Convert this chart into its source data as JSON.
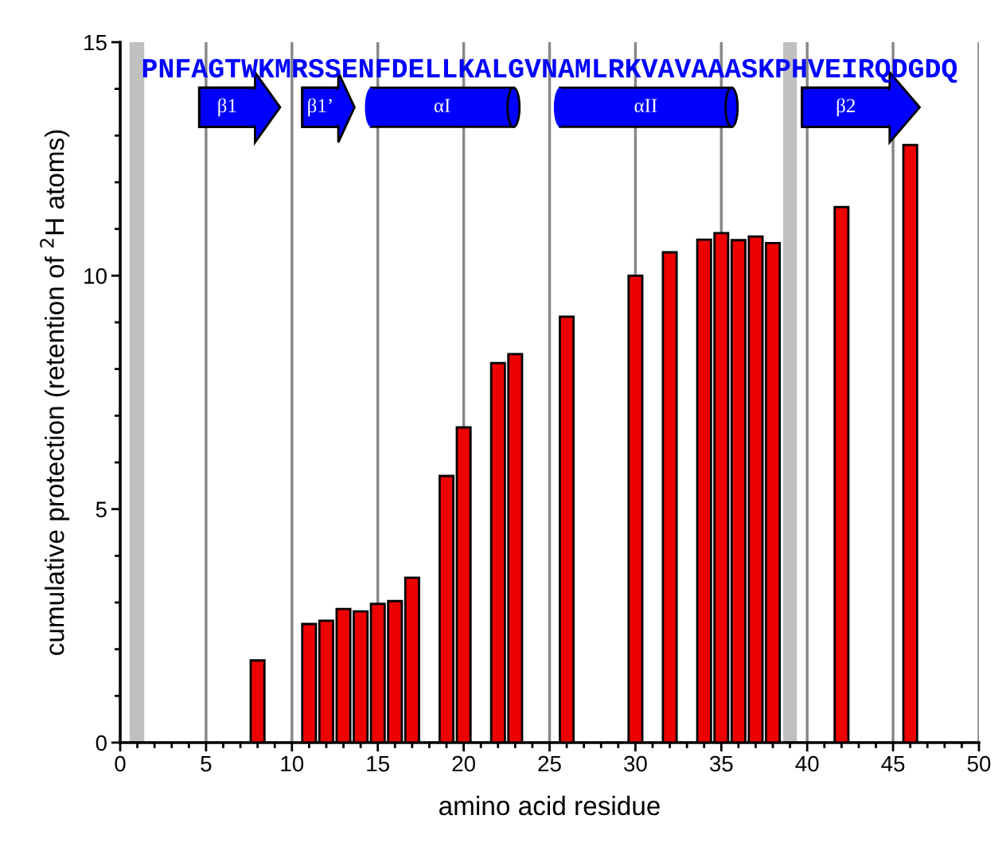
{
  "chart_data": {
    "type": "bar",
    "xlabel": "amino acid residue",
    "ylabel": "cumulative protection (retention of $^{2}$H atoms)",
    "x": [
      8,
      11,
      12,
      13,
      14,
      15,
      16,
      17,
      19,
      20,
      22,
      23,
      26,
      30,
      32,
      34,
      35,
      36,
      37,
      38,
      42,
      46
    ],
    "values": [
      1.76,
      2.54,
      2.61,
      2.86,
      2.81,
      2.97,
      3.03,
      3.53,
      5.71,
      6.75,
      8.13,
      8.32,
      9.12,
      10.0,
      10.5,
      10.77,
      10.91,
      10.76,
      10.84,
      10.7,
      11.47,
      12.8
    ],
    "color": "#ee0000",
    "xlim": [
      0,
      50
    ],
    "ylim": [
      0,
      15
    ],
    "xticks": [
      0,
      {
        "value": 1,
        "label": null
      },
      {
        "value": 2,
        "label": null
      },
      {
        "value": 3,
        "label": null
      },
      {
        "value": 4,
        "label": null
      },
      5,
      {
        "value": 6,
        "label": null
      },
      {
        "value": 7,
        "label": null
      },
      {
        "value": 8,
        "label": null
      },
      {
        "value": 9,
        "label": null
      },
      10,
      {
        "value": 11,
        "label": null
      },
      {
        "value": 12,
        "label": null
      },
      {
        "value": 13,
        "label": null
      },
      {
        "value": 14,
        "label": null
      },
      15,
      {
        "value": 16,
        "label": null
      },
      {
        "value": 17,
        "label": null
      },
      {
        "value": 18,
        "label": null
      },
      {
        "value": 19,
        "label": null
      },
      20,
      {
        "value": 21,
        "label": null
      },
      {
        "value": 22,
        "label": null
      },
      {
        "value": 23,
        "label": null
      },
      {
        "value": 24,
        "label": null
      },
      25,
      {
        "value": 26,
        "label": null
      },
      {
        "value": 27,
        "label": null
      },
      {
        "value": 28,
        "label": null
      },
      {
        "value": 29,
        "label": null
      },
      30,
      {
        "value": 31,
        "label": null
      },
      {
        "value": 32,
        "label": null
      },
      {
        "value": 33,
        "label": null
      },
      {
        "value": 34,
        "label": null
      },
      35,
      {
        "value": 36,
        "label": null
      },
      {
        "value": 37,
        "label": null
      },
      {
        "value": 38,
        "label": null
      },
      {
        "value": 39,
        "label": null
      },
      40,
      {
        "value": 41,
        "label": null
      },
      {
        "value": 42,
        "label": null
      },
      {
        "value": 43,
        "label": null
      },
      {
        "value": 44,
        "label": null
      },
      45,
      {
        "value": 46,
        "label": null
      },
      {
        "value": 47,
        "label": null
      },
      {
        "value": 48,
        "label": null
      },
      {
        "value": 49,
        "label": null
      },
      50
    ],
    "yticks": [
      0,
      {
        "value": 1,
        "label": null
      },
      {
        "value": 2,
        "label": null
      },
      {
        "value": 3,
        "label": null
      },
      {
        "value": 4,
        "label": null
      },
      5,
      {
        "value": 6,
        "label": null
      },
      {
        "value": 7,
        "label": null
      },
      {
        "value": 8,
        "label": null
      },
      {
        "value": 9,
        "label": null
      },
      10,
      {
        "value": 11,
        "label": null
      },
      {
        "value": 12,
        "label": null
      },
      {
        "value": 13,
        "label": null
      },
      {
        "value": 14,
        "label": null
      },
      15
    ],
    "grid": "x",
    "bands": [
      {
        "axis": "x",
        "from": 0.55,
        "to": 1.4,
        "color": "#c0c0c0"
      },
      {
        "axis": "x",
        "from": 38.6,
        "to": 39.4,
        "color": "#c0c0c0"
      },
      {
        "axis": "x",
        "from": 4.6,
        "to": 7.85,
        "label": "β1",
        "color": "#0000ff"
      },
      {
        "axis": "x",
        "from": 10.6,
        "to": 12.7,
        "label": "β1’",
        "color": "#0000ff"
      },
      {
        "axis": "x",
        "from": 14.6,
        "to": 22.9,
        "label": "αI",
        "color": "#0000ff"
      },
      {
        "axis": "x",
        "from": 25.6,
        "to": 35.6,
        "label": "αII",
        "color": "#0000ff"
      },
      {
        "axis": "x",
        "from": 39.7,
        "to": 44.8,
        "label": "β2",
        "color": "#0000ff"
      }
    ],
    "annotations": [
      "PNFAGTWKMRSSENFDELLKALGVNAMLRKVAVAAASKPHVEIRQDGDQ"
    ]
  }
}
